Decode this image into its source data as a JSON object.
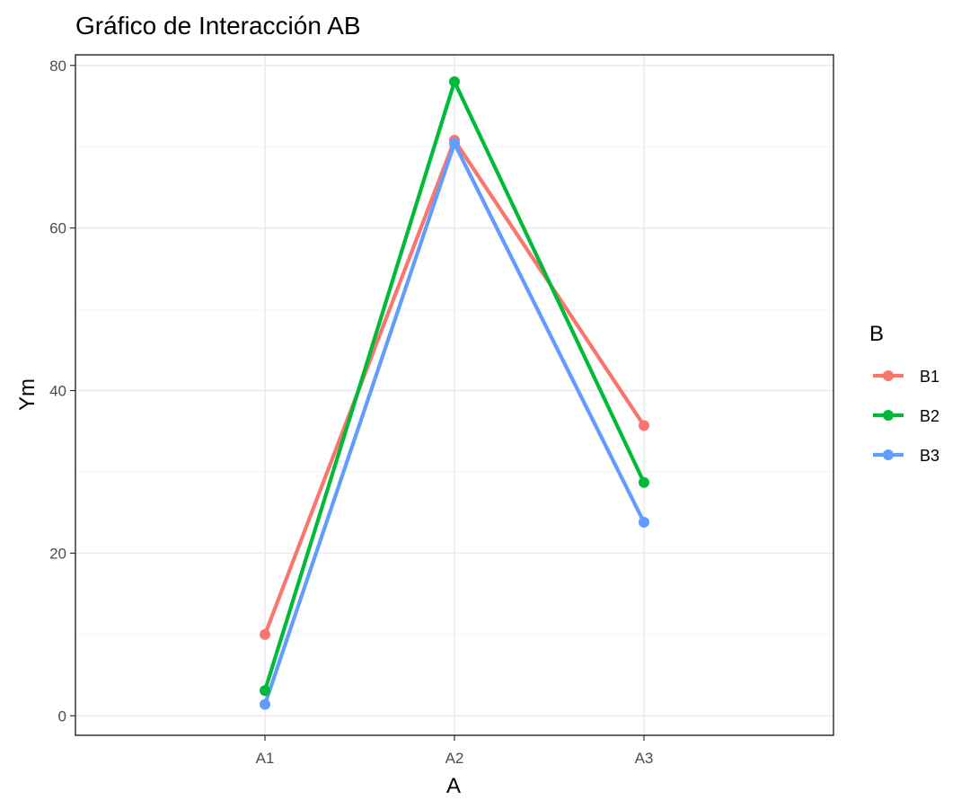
{
  "chart_data": {
    "type": "line",
    "title": "Gráfico de Interacción AB",
    "xlabel": "A",
    "ylabel": "Ym",
    "categories": [
      "A1",
      "A2",
      "A3"
    ],
    "ylim": [
      -2.4,
      81.3
    ],
    "y_ticks": [
      0,
      20,
      40,
      60,
      80
    ],
    "grid": true,
    "legend": {
      "title": "B",
      "position": "right"
    },
    "series": [
      {
        "name": "B1",
        "color": "#F8766D",
        "values": [
          10.0,
          70.8,
          35.7
        ]
      },
      {
        "name": "B2",
        "color": "#00BA38",
        "values": [
          3.1,
          78.0,
          28.7
        ]
      },
      {
        "name": "B3",
        "color": "#619CFF",
        "values": [
          1.4,
          70.4,
          23.8
        ]
      }
    ]
  }
}
